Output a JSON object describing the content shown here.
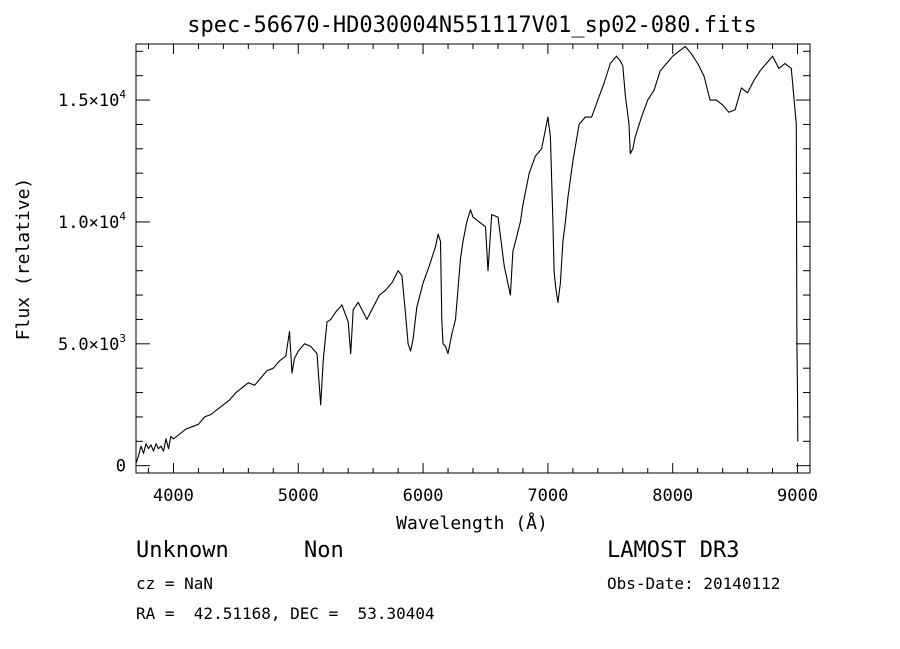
{
  "chart_data": {
    "type": "line",
    "title": "spec-56670-HD030004N551117V01_sp02-080.fits",
    "xlabel": "Wavelength (Å)",
    "ylabel": "Flux (relative)",
    "xlim": [
      3700,
      9100
    ],
    "ylim": [
      -300,
      17300
    ],
    "x_ticks": [
      4000,
      5000,
      6000,
      7000,
      8000,
      9000
    ],
    "x_tick_labels": [
      "4000",
      "5000",
      "6000",
      "7000",
      "8000",
      "9000"
    ],
    "y_ticks": [
      0,
      5000,
      10000,
      15000
    ],
    "y_tick_labels": [
      {
        "mant": "0",
        "exp": ""
      },
      {
        "mant": "5.0×10",
        "exp": "3"
      },
      {
        "mant": "1.0×10",
        "exp": "4"
      },
      {
        "mant": "1.5×10",
        "exp": "4"
      }
    ],
    "grid": false,
    "series": [
      {
        "x": [
          3700,
          3720,
          3740,
          3760,
          3780,
          3800,
          3820,
          3840,
          3860,
          3880,
          3900,
          3920,
          3940,
          3960,
          3980,
          4000,
          4050,
          4100,
          4150,
          4200,
          4250,
          4300,
          4350,
          4400,
          4450,
          4500,
          4550,
          4600,
          4650,
          4700,
          4750,
          4800,
          4850,
          4900,
          4930,
          4950,
          4970,
          5000,
          5050,
          5100,
          5150,
          5180,
          5200,
          5230,
          5260,
          5300,
          5350,
          5400,
          5420,
          5440,
          5480,
          5500,
          5550,
          5600,
          5650,
          5700,
          5750,
          5800,
          5830,
          5860,
          5880,
          5900,
          5920,
          5950,
          6000,
          6050,
          6100,
          6120,
          6140,
          6150,
          6160,
          6180,
          6200,
          6230,
          6260,
          6300,
          6320,
          6350,
          6380,
          6400,
          6450,
          6500,
          6520,
          6550,
          6600,
          6650,
          6700,
          6720,
          6750,
          6780,
          6800,
          6850,
          6900,
          6950,
          7000,
          7020,
          7040,
          7050,
          7060,
          7080,
          7100,
          7120,
          7140,
          7160,
          7200,
          7250,
          7300,
          7350,
          7400,
          7450,
          7500,
          7550,
          7580,
          7600,
          7620,
          7650,
          7660,
          7680,
          7700,
          7750,
          7800,
          7850,
          7900,
          7950,
          8000,
          8050,
          8100,
          8150,
          8200,
          8250,
          8300,
          8350,
          8400,
          8450,
          8500,
          8550,
          8600,
          8650,
          8700,
          8750,
          8800,
          8850,
          8900,
          8950,
          8990,
          8995,
          9000,
          9002
        ],
        "y": [
          100,
          400,
          800,
          500,
          900,
          700,
          850,
          600,
          900,
          700,
          800,
          600,
          1100,
          700,
          1200,
          1100,
          1300,
          1500,
          1600,
          1700,
          2000,
          2100,
          2300,
          2500,
          2700,
          3000,
          3200,
          3400,
          3300,
          3600,
          3900,
          4000,
          4300,
          4500,
          5500,
          3800,
          4400,
          4700,
          5000,
          4900,
          4600,
          2500,
          4300,
          5900,
          6000,
          6300,
          6600,
          5900,
          4600,
          6400,
          6700,
          6500,
          6000,
          6500,
          7000,
          7200,
          7500,
          8000,
          7800,
          6200,
          5000,
          4700,
          5200,
          6500,
          7500,
          8200,
          9000,
          9500,
          9200,
          6000,
          5000,
          4900,
          4600,
          5400,
          6000,
          8500,
          9200,
          10000,
          10500,
          10200,
          10000,
          9800,
          8000,
          10300,
          10200,
          8200,
          7000,
          8800,
          9400,
          10000,
          10700,
          12000,
          12700,
          13000,
          14300,
          13500,
          10000,
          8000,
          7400,
          6700,
          7500,
          9200,
          10000,
          11000,
          12500,
          14000,
          14300,
          14300,
          15000,
          15700,
          16500,
          16800,
          16600,
          16400,
          15200,
          14000,
          12800,
          13000,
          13500,
          14300,
          15000,
          15400,
          16200,
          16500,
          16800,
          17000,
          17200,
          16900,
          16500,
          16000,
          15000,
          15000,
          14800,
          14500,
          14600,
          15500,
          15300,
          15800,
          16200,
          16500,
          16800,
          16300,
          16500,
          16300,
          14000,
          5000,
          3000,
          1000
        ]
      }
    ]
  },
  "footer": {
    "object_class": "Unknown",
    "object_subclass": "Non",
    "survey": "LAMOST DR3",
    "cz": "cz = NaN",
    "obs_date": "Obs-Date: 20140112",
    "coords": "RA =  42.51168, DEC =  53.30404"
  }
}
